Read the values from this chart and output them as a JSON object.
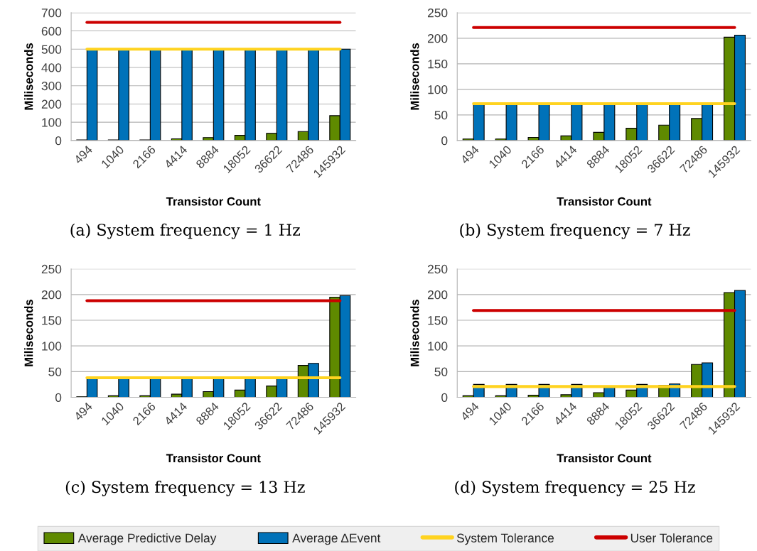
{
  "chart_data": [
    {
      "type": "bar",
      "title": "(a) System frequency = 1 Hz",
      "xlabel": "Transistor Count",
      "ylabel": "Miliseconds",
      "categories": [
        "494",
        "1040",
        "2166",
        "4414",
        "8884",
        "18052",
        "36622",
        "72486",
        "145932"
      ],
      "series": [
        {
          "name": "Average Predictive Delay",
          "color": "#5f8a00",
          "values": [
            3,
            3,
            3,
            9,
            16,
            28,
            39,
            49,
            136
          ]
        },
        {
          "name": "Average ΔEvent",
          "color": "#0072b9",
          "values": [
            500,
            500,
            500,
            500,
            500,
            500,
            500,
            500,
            500
          ]
        },
        {
          "name": "System Tolerance",
          "type": "line",
          "color": "#ffd320",
          "values": [
            500,
            500,
            500,
            500,
            500,
            500,
            500,
            500,
            500
          ]
        },
        {
          "name": "User Tolerance",
          "type": "line",
          "color": "#cc0000",
          "values": [
            647,
            647,
            647,
            647,
            647,
            647,
            647,
            647,
            647
          ]
        }
      ],
      "ylim": [
        0,
        700
      ],
      "yticks": [
        0,
        100,
        200,
        300,
        400,
        500,
        600,
        700
      ],
      "grid": "y",
      "legend": "bottom"
    },
    {
      "type": "bar",
      "title": "(b) System frequency = 7 Hz",
      "xlabel": "Transistor Count",
      "ylabel": "Miliseconds",
      "categories": [
        "494",
        "1040",
        "2166",
        "4414",
        "8884",
        "18052",
        "36622",
        "72486",
        "145932"
      ],
      "series": [
        {
          "name": "Average Predictive Delay",
          "color": "#5f8a00",
          "values": [
            3,
            3,
            6,
            9,
            16,
            24,
            30,
            43,
            202
          ]
        },
        {
          "name": "Average ΔEvent",
          "color": "#0072b9",
          "values": [
            73,
            72,
            72,
            73,
            72,
            72,
            72,
            72,
            206
          ]
        },
        {
          "name": "System Tolerance",
          "type": "line",
          "color": "#ffd320",
          "values": [
            72,
            72,
            72,
            72,
            72,
            72,
            72,
            72,
            72
          ]
        },
        {
          "name": "User Tolerance",
          "type": "line",
          "color": "#cc0000",
          "values": [
            221,
            221,
            221,
            221,
            221,
            221,
            221,
            221,
            221
          ]
        }
      ],
      "ylim": [
        0,
        250
      ],
      "yticks": [
        0,
        50,
        100,
        150,
        200,
        250
      ],
      "grid": "y",
      "legend": "bottom"
    },
    {
      "type": "bar",
      "title": "(c) System frequency = 13 Hz",
      "xlabel": "Transistor Count",
      "ylabel": "Miliseconds",
      "categories": [
        "494",
        "1040",
        "2166",
        "4414",
        "8884",
        "18052",
        "36622",
        "72486",
        "145932"
      ],
      "series": [
        {
          "name": "Average Predictive Delay",
          "color": "#5f8a00",
          "values": [
            1,
            3,
            3,
            6,
            11,
            14,
            22,
            62,
            195
          ]
        },
        {
          "name": "Average ΔEvent",
          "color": "#0072b9",
          "values": [
            38,
            38,
            38,
            38,
            38,
            38,
            38,
            66,
            198
          ]
        },
        {
          "name": "System Tolerance",
          "type": "line",
          "color": "#ffd320",
          "values": [
            38,
            38,
            38,
            38,
            38,
            38,
            38,
            38,
            38
          ]
        },
        {
          "name": "User Tolerance",
          "type": "line",
          "color": "#cc0000",
          "values": [
            188,
            188,
            188,
            188,
            188,
            188,
            188,
            188,
            188
          ]
        }
      ],
      "ylim": [
        0,
        250
      ],
      "yticks": [
        0,
        50,
        100,
        150,
        200,
        250
      ],
      "grid": "y",
      "legend": "bottom"
    },
    {
      "type": "bar",
      "title": "(d) System frequency = 25 Hz",
      "xlabel": "Transistor Count",
      "ylabel": "Miliseconds",
      "categories": [
        "494",
        "1040",
        "2166",
        "4414",
        "8884",
        "18052",
        "36622",
        "72486",
        "145932"
      ],
      "series": [
        {
          "name": "Average Predictive Delay",
          "color": "#5f8a00",
          "values": [
            3,
            3,
            4,
            5,
            9,
            14,
            23,
            64,
            204
          ]
        },
        {
          "name": "Average ΔEvent",
          "color": "#0072b9",
          "values": [
            25,
            25,
            25,
            25,
            22,
            25,
            26,
            67,
            208
          ]
        },
        {
          "name": "System Tolerance",
          "type": "line",
          "color": "#ffd320",
          "values": [
            21,
            21,
            21,
            21,
            21,
            21,
            21,
            21,
            21
          ]
        },
        {
          "name": "User Tolerance",
          "type": "line",
          "color": "#cc0000",
          "values": [
            169,
            169,
            169,
            169,
            169,
            169,
            169,
            169,
            169
          ]
        }
      ],
      "ylim": [
        0,
        250
      ],
      "yticks": [
        0,
        50,
        100,
        150,
        200,
        250
      ],
      "grid": "y",
      "legend": "bottom"
    }
  ]
}
